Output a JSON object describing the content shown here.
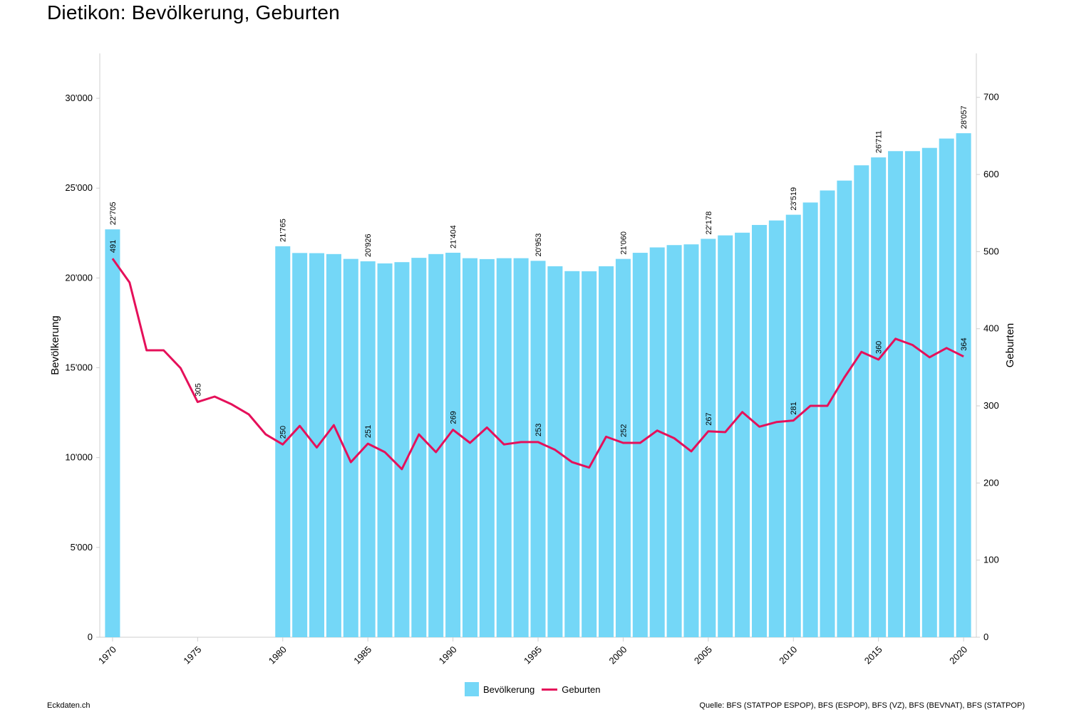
{
  "title": "Dietikon: Bevölkerung, Geburten",
  "footer": {
    "left": "Eckdaten.ch",
    "right": "Quelle: BFS (STATPOP ESPOP), BFS (ESPOP), BFS (VZ), BFS (BEVNAT), BFS (STATPOP)"
  },
  "colors": {
    "bar": "#74d7f7",
    "line": "#e5105a",
    "axis": "#cfcfcf"
  },
  "legend": {
    "bar_label": "Bevölkerung",
    "line_label": "Geburten"
  },
  "chart_data": {
    "type": "bar",
    "title": "Dietikon: Bevölkerung, Geburten",
    "xlabel": "",
    "ylabel": "Bevölkerung",
    "y2label": "Geburten",
    "ylim": [
      0,
      32500
    ],
    "y2lim": [
      0,
      757
    ],
    "yticks": [
      0,
      5000,
      10000,
      15000,
      20000,
      25000,
      30000
    ],
    "ytick_labels": [
      "0",
      "5'000",
      "10'000",
      "15'000",
      "20'000",
      "25'000",
      "30'000"
    ],
    "y2ticks": [
      0,
      100,
      200,
      300,
      400,
      500,
      600,
      700
    ],
    "y2tick_labels": [
      "0",
      "100",
      "200",
      "300",
      "400",
      "500",
      "600",
      "700"
    ],
    "xticks": [
      1970,
      1975,
      1980,
      1985,
      1990,
      1995,
      2000,
      2005,
      2010,
      2015,
      2020
    ],
    "xtick_labels": [
      "1970",
      "1975",
      "1980",
      "1985",
      "1990",
      "1995",
      "2000",
      "2005",
      "2010",
      "2015",
      "2020"
    ],
    "grid": false,
    "legend_position": "bottom",
    "bar_series": {
      "name": "Bevölkerung",
      "points": [
        {
          "x": 1970,
          "y": 22705
        },
        {
          "x": 1980,
          "y": 21765
        },
        {
          "x": 1981,
          "y": 21390
        },
        {
          "x": 1982,
          "y": 21380
        },
        {
          "x": 1983,
          "y": 21330
        },
        {
          "x": 1984,
          "y": 21060
        },
        {
          "x": 1985,
          "y": 20926
        },
        {
          "x": 1986,
          "y": 20810
        },
        {
          "x": 1987,
          "y": 20880
        },
        {
          "x": 1988,
          "y": 21120
        },
        {
          "x": 1989,
          "y": 21330
        },
        {
          "x": 1990,
          "y": 21404
        },
        {
          "x": 1991,
          "y": 21100
        },
        {
          "x": 1992,
          "y": 21050
        },
        {
          "x": 1993,
          "y": 21100
        },
        {
          "x": 1994,
          "y": 21100
        },
        {
          "x": 1995,
          "y": 20953
        },
        {
          "x": 1996,
          "y": 20650
        },
        {
          "x": 1997,
          "y": 20380
        },
        {
          "x": 1998,
          "y": 20370
        },
        {
          "x": 1999,
          "y": 20650
        },
        {
          "x": 2000,
          "y": 21060
        },
        {
          "x": 2001,
          "y": 21400
        },
        {
          "x": 2002,
          "y": 21700
        },
        {
          "x": 2003,
          "y": 21830
        },
        {
          "x": 2004,
          "y": 21870
        },
        {
          "x": 2005,
          "y": 22178
        },
        {
          "x": 2006,
          "y": 22370
        },
        {
          "x": 2007,
          "y": 22520
        },
        {
          "x": 2008,
          "y": 22950
        },
        {
          "x": 2009,
          "y": 23200
        },
        {
          "x": 2010,
          "y": 23519
        },
        {
          "x": 2011,
          "y": 24200
        },
        {
          "x": 2012,
          "y": 24870
        },
        {
          "x": 2013,
          "y": 25420
        },
        {
          "x": 2014,
          "y": 26270
        },
        {
          "x": 2015,
          "y": 26711
        },
        {
          "x": 2016,
          "y": 27060
        },
        {
          "x": 2017,
          "y": 27060
        },
        {
          "x": 2018,
          "y": 27240
        },
        {
          "x": 2019,
          "y": 27760
        },
        {
          "x": 2020,
          "y": 28057
        }
      ],
      "labels": [
        {
          "x": 1970,
          "text": "22'705"
        },
        {
          "x": 1980,
          "text": "21'765"
        },
        {
          "x": 1985,
          "text": "20'926"
        },
        {
          "x": 1990,
          "text": "21'404"
        },
        {
          "x": 1995,
          "text": "20'953"
        },
        {
          "x": 2000,
          "text": "21'060"
        },
        {
          "x": 2005,
          "text": "22'178"
        },
        {
          "x": 2010,
          "text": "23'519"
        },
        {
          "x": 2015,
          "text": "26'711"
        },
        {
          "x": 2020,
          "text": "28'057"
        }
      ]
    },
    "line_series": {
      "name": "Geburten",
      "points": [
        {
          "x": 1970,
          "y": 491
        },
        {
          "x": 1971,
          "y": 460
        },
        {
          "x": 1972,
          "y": 372
        },
        {
          "x": 1973,
          "y": 372
        },
        {
          "x": 1974,
          "y": 349
        },
        {
          "x": 1975,
          "y": 305
        },
        {
          "x": 1976,
          "y": 312
        },
        {
          "x": 1977,
          "y": 302
        },
        {
          "x": 1978,
          "y": 289
        },
        {
          "x": 1979,
          "y": 263
        },
        {
          "x": 1980,
          "y": 250
        },
        {
          "x": 1981,
          "y": 274
        },
        {
          "x": 1982,
          "y": 246
        },
        {
          "x": 1983,
          "y": 275
        },
        {
          "x": 1984,
          "y": 227
        },
        {
          "x": 1985,
          "y": 251
        },
        {
          "x": 1986,
          "y": 240
        },
        {
          "x": 1987,
          "y": 218
        },
        {
          "x": 1988,
          "y": 263
        },
        {
          "x": 1989,
          "y": 240
        },
        {
          "x": 1990,
          "y": 269
        },
        {
          "x": 1991,
          "y": 252
        },
        {
          "x": 1992,
          "y": 272
        },
        {
          "x": 1993,
          "y": 250
        },
        {
          "x": 1994,
          "y": 253
        },
        {
          "x": 1995,
          "y": 253
        },
        {
          "x": 1996,
          "y": 243
        },
        {
          "x": 1997,
          "y": 227
        },
        {
          "x": 1998,
          "y": 220
        },
        {
          "x": 1999,
          "y": 260
        },
        {
          "x": 2000,
          "y": 252
        },
        {
          "x": 2001,
          "y": 252
        },
        {
          "x": 2002,
          "y": 268
        },
        {
          "x": 2003,
          "y": 258
        },
        {
          "x": 2004,
          "y": 241
        },
        {
          "x": 2005,
          "y": 267
        },
        {
          "x": 2006,
          "y": 266
        },
        {
          "x": 2007,
          "y": 292
        },
        {
          "x": 2008,
          "y": 273
        },
        {
          "x": 2009,
          "y": 279
        },
        {
          "x": 2010,
          "y": 281
        },
        {
          "x": 2011,
          "y": 300
        },
        {
          "x": 2012,
          "y": 300
        },
        {
          "x": 2013,
          "y": 337
        },
        {
          "x": 2014,
          "y": 370
        },
        {
          "x": 2015,
          "y": 360
        },
        {
          "x": 2016,
          "y": 387
        },
        {
          "x": 2017,
          "y": 379
        },
        {
          "x": 2018,
          "y": 363
        },
        {
          "x": 2019,
          "y": 375
        },
        {
          "x": 2020,
          "y": 364
        }
      ],
      "labels": [
        {
          "x": 1970,
          "text": "491"
        },
        {
          "x": 1975,
          "text": "305"
        },
        {
          "x": 1980,
          "text": "250"
        },
        {
          "x": 1985,
          "text": "251"
        },
        {
          "x": 1990,
          "text": "269"
        },
        {
          "x": 1995,
          "text": "253"
        },
        {
          "x": 2000,
          "text": "252"
        },
        {
          "x": 2005,
          "text": "267"
        },
        {
          "x": 2010,
          "text": "281"
        },
        {
          "x": 2015,
          "text": "360"
        },
        {
          "x": 2020,
          "text": "364"
        }
      ]
    }
  }
}
